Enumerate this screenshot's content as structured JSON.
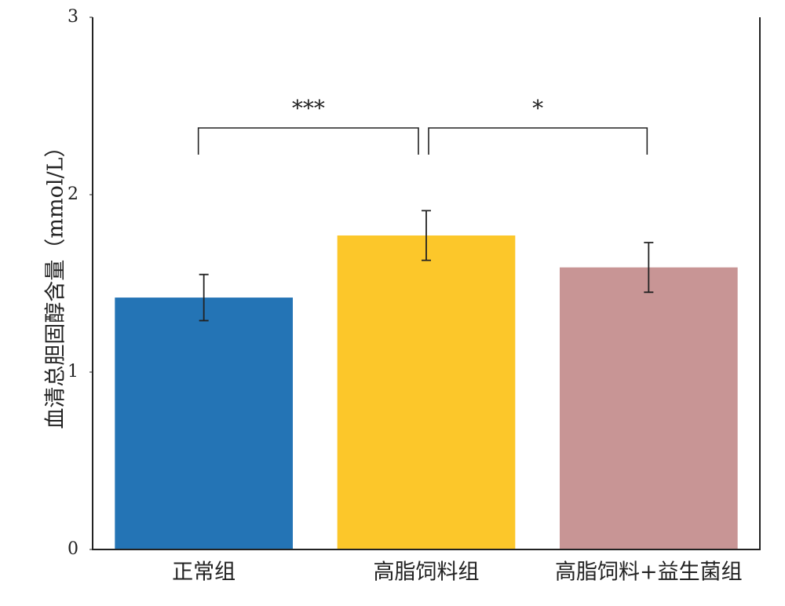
{
  "chart_data": {
    "type": "bar",
    "ylabel": "血清总胆固醇含量（mmol/L）",
    "categories": [
      "正常组",
      "高脂饲料组",
      "高脂饲料+益生菌组"
    ],
    "values": [
      1.42,
      1.77,
      1.59
    ],
    "errors": [
      0.13,
      0.14,
      0.14
    ],
    "colors": [
      "#2474b5",
      "#fcc72a",
      "#c89595"
    ],
    "ylim": [
      0,
      3
    ],
    "yticks": [
      0,
      1,
      2,
      3
    ],
    "annotations": [
      "***",
      "*"
    ]
  }
}
